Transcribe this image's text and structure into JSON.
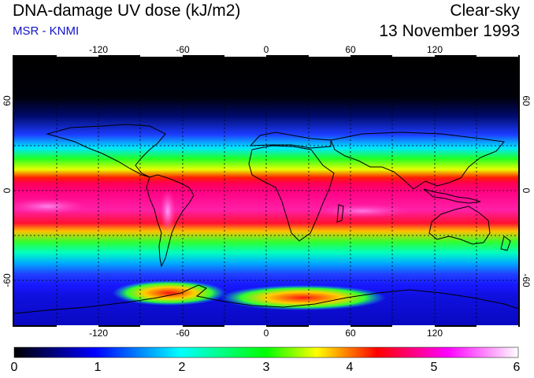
{
  "header": {
    "title": "DNA-damage UV dose (kJ/m2)",
    "source": "MSR - KNMI",
    "condition": "Clear-sky",
    "date": "13 November 1993"
  },
  "map": {
    "projection": "equirectangular",
    "lon_range": [
      -180,
      180
    ],
    "lat_range": [
      -90,
      90
    ],
    "lon_grid": [
      -150,
      -120,
      -90,
      -60,
      -30,
      0,
      30,
      60,
      90,
      120,
      150
    ],
    "lat_grid": [
      -60,
      -30,
      0,
      30,
      60
    ],
    "lon_tick_labels": [
      "-120",
      "-60",
      "0",
      "60",
      "120"
    ],
    "lat_tick_labels": [
      "60",
      "0",
      "-60"
    ],
    "gridlines": "dotted"
  },
  "colorbar": {
    "min": 0,
    "max": 6,
    "tick_labels": [
      "0",
      "1",
      "2",
      "3",
      "4",
      "5",
      "6"
    ],
    "colors": [
      "#000000",
      "#0000ff",
      "#00ffff",
      "#00ff00",
      "#ffff00",
      "#ff0000",
      "#ff00ff",
      "#ffffff"
    ]
  }
}
